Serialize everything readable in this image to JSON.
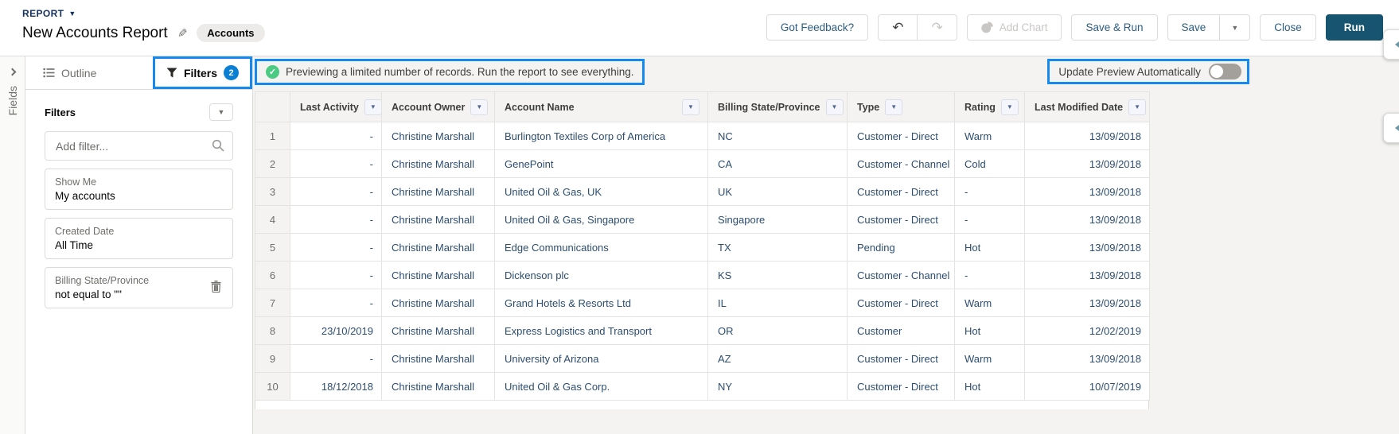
{
  "header": {
    "report_type_label": "REPORT",
    "title": "New Accounts Report",
    "object_badge": "Accounts",
    "got_feedback": "Got Feedback?",
    "add_chart": "Add Chart",
    "save_and_run": "Save & Run",
    "save": "Save",
    "close": "Close",
    "run": "Run"
  },
  "left_rail": {
    "label": "Fields"
  },
  "tabs": {
    "outline_label": "Outline",
    "filters_label": "Filters",
    "filters_count": "2"
  },
  "filters_panel": {
    "heading": "Filters",
    "add_filter_placeholder": "Add filter...",
    "cards": [
      {
        "label": "Show Me",
        "value": "My accounts",
        "removable": false
      },
      {
        "label": "Created Date",
        "value": "All Time",
        "removable": false
      },
      {
        "label": "Billing State/Province",
        "value": "not equal to \"\"",
        "removable": true
      }
    ]
  },
  "preview": {
    "banner_text": "Previewing a limited number of records. Run the report to see everything.",
    "auto_update_label": "Update Preview Automatically",
    "auto_update_on": false
  },
  "table": {
    "columns": [
      {
        "key": "last_activity",
        "label": "Last Activity"
      },
      {
        "key": "account_owner",
        "label": "Account Owner"
      },
      {
        "key": "account_name",
        "label": "Account Name"
      },
      {
        "key": "billing_state",
        "label": "Billing State/Province"
      },
      {
        "key": "type",
        "label": "Type"
      },
      {
        "key": "rating",
        "label": "Rating"
      },
      {
        "key": "last_modified",
        "label": "Last Modified Date"
      }
    ],
    "rows": [
      {
        "num": "1",
        "last_activity": "-",
        "account_owner": "Christine Marshall",
        "account_name": "Burlington Textiles Corp of America",
        "billing_state": "NC",
        "type": "Customer - Direct",
        "rating": "Warm",
        "last_modified": "13/09/2018"
      },
      {
        "num": "2",
        "last_activity": "-",
        "account_owner": "Christine Marshall",
        "account_name": "GenePoint",
        "billing_state": "CA",
        "type": "Customer - Channel",
        "rating": "Cold",
        "last_modified": "13/09/2018"
      },
      {
        "num": "3",
        "last_activity": "-",
        "account_owner": "Christine Marshall",
        "account_name": "United Oil & Gas, UK",
        "billing_state": "UK",
        "type": "Customer - Direct",
        "rating": "-",
        "last_modified": "13/09/2018"
      },
      {
        "num": "4",
        "last_activity": "-",
        "account_owner": "Christine Marshall",
        "account_name": "United Oil & Gas, Singapore",
        "billing_state": "Singapore",
        "type": "Customer - Direct",
        "rating": "-",
        "last_modified": "13/09/2018"
      },
      {
        "num": "5",
        "last_activity": "-",
        "account_owner": "Christine Marshall",
        "account_name": "Edge Communications",
        "billing_state": "TX",
        "type": "Pending",
        "rating": "Hot",
        "last_modified": "13/09/2018"
      },
      {
        "num": "6",
        "last_activity": "-",
        "account_owner": "Christine Marshall",
        "account_name": "Dickenson plc",
        "billing_state": "KS",
        "type": "Customer - Channel",
        "rating": "-",
        "last_modified": "13/09/2018"
      },
      {
        "num": "7",
        "last_activity": "-",
        "account_owner": "Christine Marshall",
        "account_name": "Grand Hotels & Resorts Ltd",
        "billing_state": "IL",
        "type": "Customer - Direct",
        "rating": "Warm",
        "last_modified": "13/09/2018"
      },
      {
        "num": "8",
        "last_activity": "23/10/2019",
        "account_owner": "Christine Marshall",
        "account_name": "Express Logistics and Transport",
        "billing_state": "OR",
        "type": "Customer",
        "rating": "Hot",
        "last_modified": "12/02/2019"
      },
      {
        "num": "9",
        "last_activity": "-",
        "account_owner": "Christine Marshall",
        "account_name": "University of Arizona",
        "billing_state": "AZ",
        "type": "Customer - Direct",
        "rating": "Warm",
        "last_modified": "13/09/2018"
      },
      {
        "num": "10",
        "last_activity": "18/12/2018",
        "account_owner": "Christine Marshall",
        "account_name": "United Oil & Gas Corp.",
        "billing_state": "NY",
        "type": "Customer - Direct",
        "rating": "Hot",
        "last_modified": "10/07/2019"
      }
    ]
  },
  "colors": {
    "highlight_blue": "#1589ee",
    "badge_blue": "#0b7fd4",
    "run_button": "#16546f",
    "success_green": "#4bca81"
  }
}
